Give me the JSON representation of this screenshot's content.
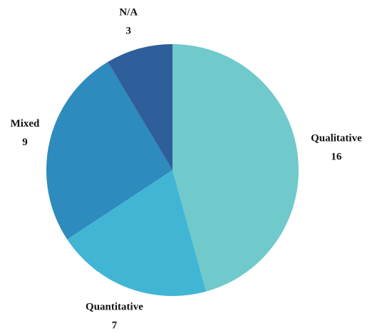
{
  "chart_data": {
    "type": "pie",
    "categories": [
      "Qualitative",
      "Quantitative",
      "Mixed",
      "N/A"
    ],
    "values": [
      16,
      7,
      9,
      3
    ],
    "colors": [
      "#70c9cb",
      "#41b6d4",
      "#2e8bbd",
      "#2e5f9a"
    ]
  }
}
